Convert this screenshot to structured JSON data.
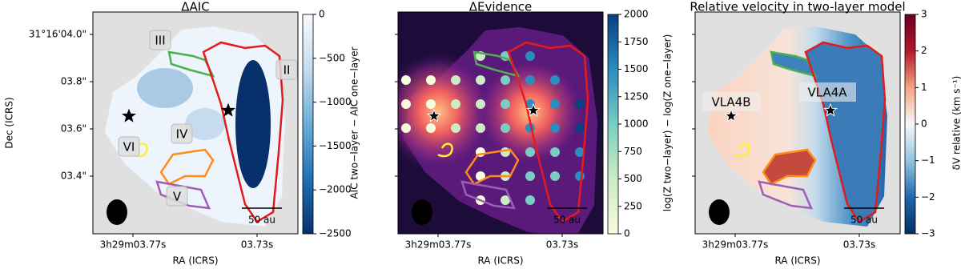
{
  "chart_data": [
    {
      "type": "image",
      "title": "ΔAIC",
      "xlabel": "RA (ICRS)",
      "ylabel": "Dec (ICRS)",
      "ytick_labels": [
        "31°16'04.0\"",
        "03.8\"",
        "03.6\"",
        "03.4\""
      ],
      "xtick_labels": [
        "3h29m03.77s",
        "03.73s"
      ],
      "colorbar_label": "AIC two−layer − AIC one−layer",
      "clim": [
        -2500,
        0
      ],
      "cticks": [
        0,
        {
          "value": -500,
          "label": "−500"
        },
        {
          "value": -1000,
          "label": "−1000"
        },
        {
          "value": -1500,
          "label": "−1500"
        },
        {
          "value": -2000,
          "label": "−2000"
        },
        {
          "value": -2500,
          "label": "−2500"
        }
      ],
      "colormap": [
        "#08306b",
        "#2171b5",
        "#6baed6",
        "#c6dbef",
        "#f7fbff"
      ],
      "regions": [
        {
          "label": "III",
          "color": "#4caf50"
        },
        {
          "label": "II",
          "color": "#e41a1c"
        },
        {
          "label": "VI",
          "color": "#ffee33"
        },
        {
          "label": "IV",
          "color": "#ff8c1a"
        },
        {
          "label": "V",
          "color": "#9c5fb5"
        }
      ],
      "scale_bar": "50 au"
    },
    {
      "type": "image",
      "title": "ΔEvidence",
      "xlabel": "RA (ICRS)",
      "xtick_labels": [
        "3h29m03.77s",
        "03.73s"
      ],
      "colorbar_label": "log(Z two−layer) − log(Z one−layer)",
      "clim": [
        0,
        2000
      ],
      "cticks": [
        0,
        250,
        500,
        750,
        1000,
        1250,
        1500,
        1750,
        2000
      ],
      "colormap": [
        "#f7fcdc",
        "#ccebc5",
        "#7bccc4",
        "#2b8cbe",
        "#084081"
      ],
      "scale_bar": "50 au"
    },
    {
      "type": "image",
      "title": "Relative velocity in two-layer model",
      "xlabel": "RA (ICRS)",
      "xtick_labels": [
        "3h29m03.77s",
        "03.73s"
      ],
      "colorbar_label": "δV relative (km s⁻¹)",
      "clim": [
        -3,
        3
      ],
      "cticks": [
        {
          "value": -3,
          "label": "−3"
        },
        {
          "value": -2,
          "label": "−2"
        },
        {
          "value": -1,
          "label": "−1"
        },
        0,
        1,
        2,
        3
      ],
      "colormap": [
        "#053061",
        "#2166ac",
        "#92c5de",
        "#f7f7f7",
        "#f4a582",
        "#b2182b",
        "#67001f"
      ],
      "sources": [
        "VLA4B",
        "VLA4A"
      ],
      "scale_bar": "50 au"
    }
  ]
}
